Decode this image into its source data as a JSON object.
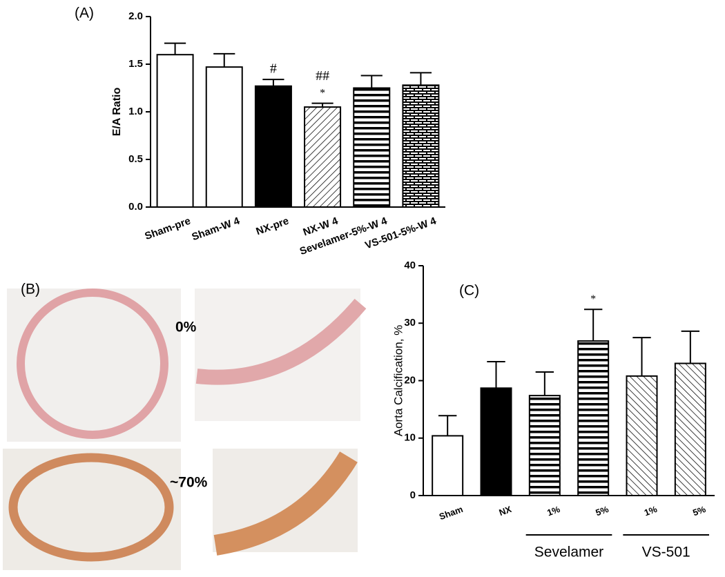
{
  "chart_data": [
    {
      "type": "bar",
      "panel_label": "(A)",
      "y_label": "E/A Ratio",
      "categories": [
        "Sham-pre",
        "Sham-W 4",
        "NX-pre",
        "NX-W 4",
        "Sevelamer-5%-W 4",
        "VS-501-5%-W 4"
      ],
      "values": [
        1.6,
        1.47,
        1.27,
        1.05,
        1.25,
        1.28
      ],
      "errors": [
        0.12,
        0.14,
        0.07,
        0.04,
        0.13,
        0.13
      ],
      "patterns": [
        "white",
        "white",
        "black",
        "diag-up",
        "horizontal",
        "brick"
      ],
      "annotations": [
        null,
        null,
        [
          "#"
        ],
        [
          "##",
          "*"
        ],
        null,
        null
      ],
      "ylim": [
        0,
        2
      ],
      "yticks": [
        {
          "value": 0,
          "label": "0.0"
        },
        0.5,
        {
          "value": 1,
          "label": "1.0"
        },
        1.5,
        {
          "value": 2,
          "label": "2.0"
        }
      ]
    },
    {
      "type": "bar",
      "panel_label": "(C)",
      "y_label": "Aorta Calcification, %",
      "categories": [
        "Sham",
        "NX",
        "1%",
        "5%",
        "1%",
        "5%"
      ],
      "values": [
        10.4,
        18.7,
        17.4,
        26.9,
        20.8,
        23
      ],
      "errors": [
        3.5,
        4.6,
        4.1,
        5.5,
        6.7,
        5.6
      ],
      "patterns": [
        "white",
        "black",
        "horizontal",
        "horizontal",
        "diag-down",
        "diag-down"
      ],
      "annotations": [
        null,
        null,
        null,
        [
          "*"
        ],
        null,
        null
      ],
      "groups": [
        "Sevelamer",
        "VS-501"
      ],
      "ylim": [
        0,
        40
      ],
      "yticks": [
        0,
        10,
        20,
        30,
        40
      ]
    }
  ],
  "panel_b": {
    "label": "(B)",
    "annotations": [
      "0%",
      "~70%"
    ]
  }
}
